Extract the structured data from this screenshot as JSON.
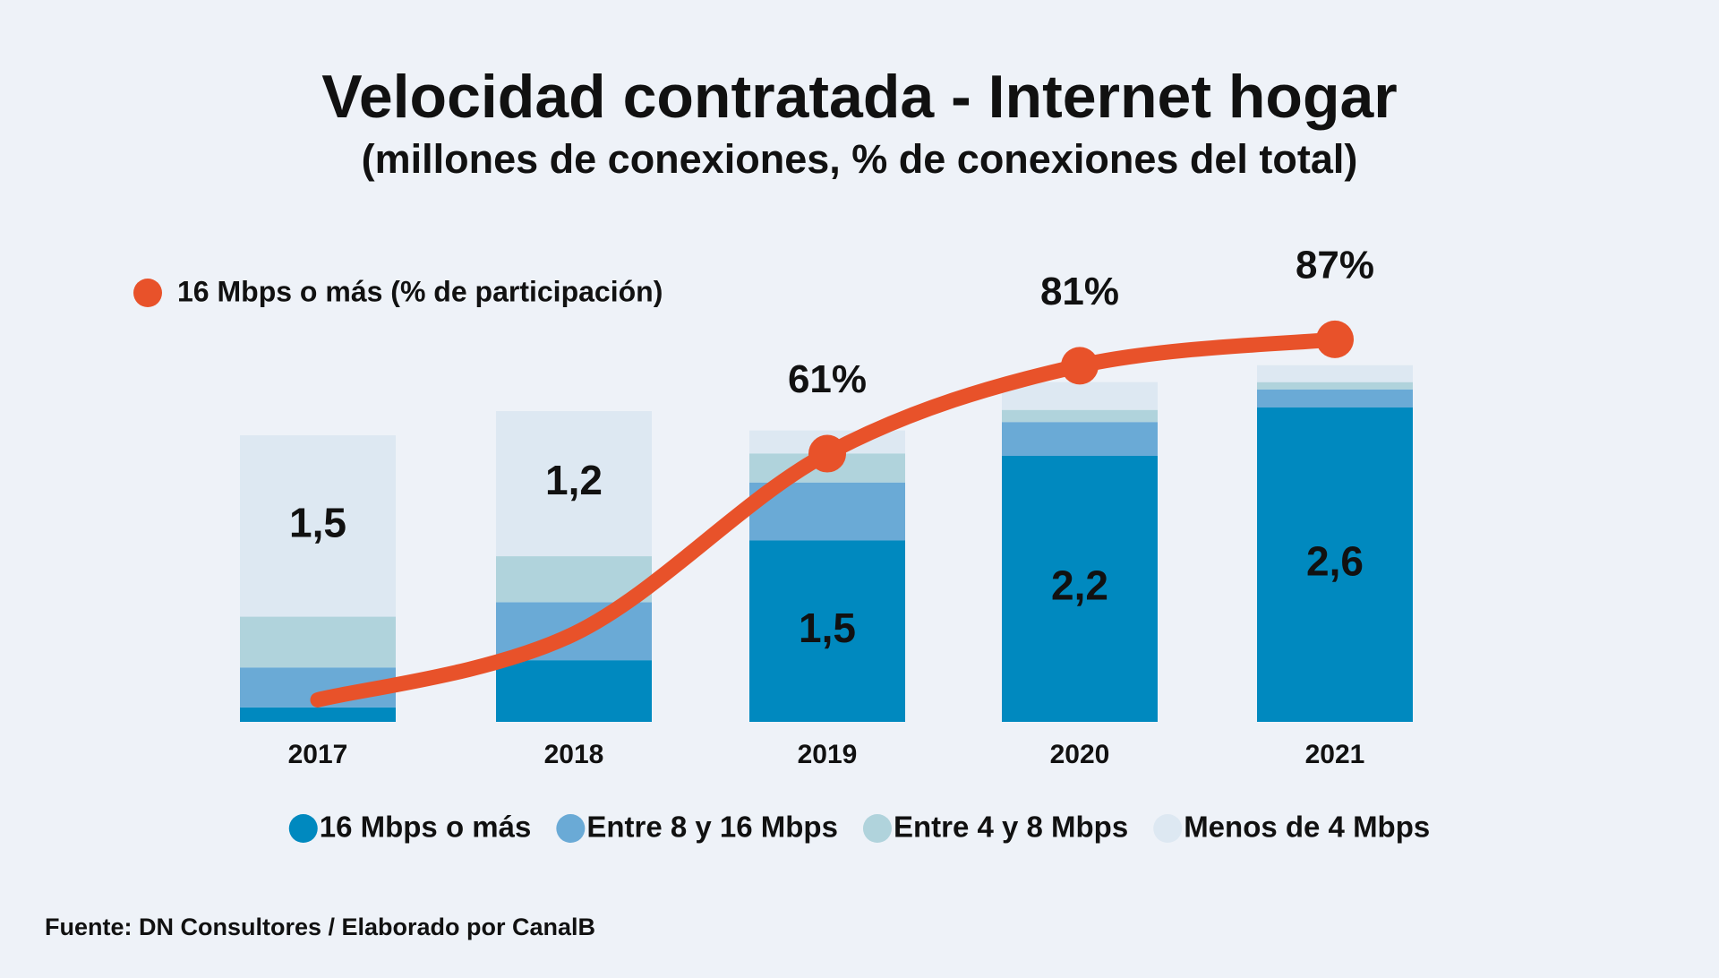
{
  "chart_data": {
    "type": "bar",
    "stacked": true,
    "title": "Velocidad contratada - Internet hogar",
    "subtitle": "(millones de conexiones, % de conexiones del total)",
    "source": "Fuente: DN Consultores / Elaborado por CanalB",
    "categories": [
      "2017",
      "2018",
      "2019",
      "2020",
      "2021"
    ],
    "ylim": [
      0,
      4
    ],
    "y2lim": [
      0,
      110
    ],
    "series": [
      {
        "name": "16 Mbps o más",
        "color": "#0089bf",
        "values": [
          0.12,
          0.51,
          1.5,
          2.2,
          2.6
        ],
        "value_labels": [
          null,
          null,
          "1,5",
          "2,2",
          "2,6"
        ],
        "label_color": "#ffffff"
      },
      {
        "name": "Entre 8 y 16 Mbps",
        "color": "#6aaad6",
        "values": [
          0.33,
          0.48,
          0.48,
          0.28,
          0.15
        ]
      },
      {
        "name": "Entre 4 y 8 Mbps",
        "color": "#b0d3dc",
        "values": [
          0.42,
          0.38,
          0.24,
          0.1,
          0.06
        ]
      },
      {
        "name": "Menos de 4 Mbps",
        "color": "#dde8f2",
        "values": [
          1.5,
          1.2,
          0.19,
          0.23,
          0.14
        ],
        "value_labels": [
          "1,5",
          "1,2",
          null,
          null,
          null
        ],
        "label_color": "#111111"
      }
    ],
    "line": {
      "type": "line",
      "axis": "y2",
      "name": "16 Mbps o más (% de participación)",
      "color": "#e8522a",
      "values": [
        5,
        20,
        61,
        81,
        87
      ],
      "value_labels": [
        null,
        null,
        "61%",
        "81%",
        "87%"
      ]
    }
  }
}
